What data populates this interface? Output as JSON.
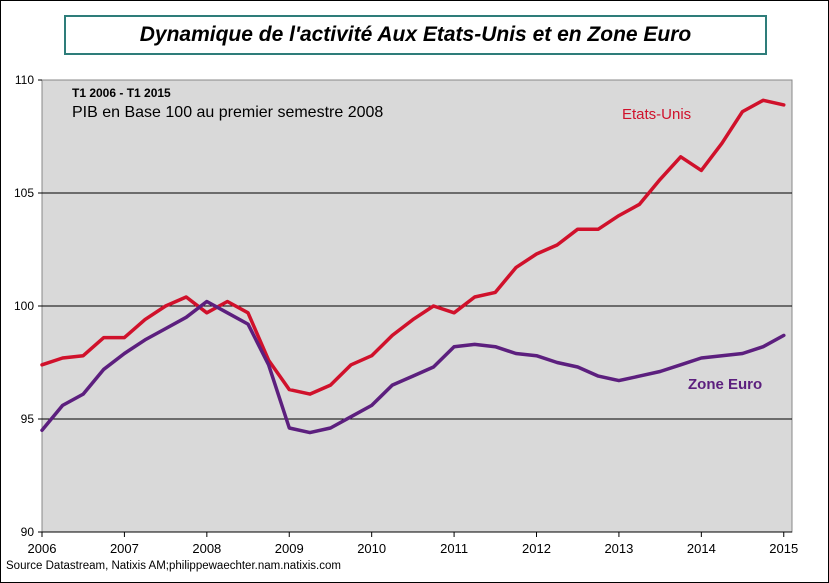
{
  "title": "Dynamique de l'activité Aux Etats-Unis et en Zone Euro",
  "source": "Source Datastream, Natixis AM;philippewaechter.nam.natixis.com",
  "colors": {
    "us": "#d0112b",
    "ez": "#5c1f7e",
    "plot_bg": "#d9d9d9",
    "title_border": "#2e7d7a"
  },
  "chart_data": {
    "type": "line",
    "title": "Dynamique de l'activité Aux Etats-Unis et en Zone Euro",
    "annotations": [
      "T1 2006 - T1 2015",
      "PIB en Base 100 au premier semestre 2008"
    ],
    "xlabel": "",
    "ylabel": "",
    "xlim": [
      2006,
      2015.1
    ],
    "ylim": [
      90,
      110
    ],
    "x_ticks": [
      "2006",
      "2007",
      "2008",
      "2009",
      "2010",
      "2011",
      "2012",
      "2013",
      "2014",
      "2015"
    ],
    "y_ticks": [
      "90",
      "95",
      "100",
      "105",
      "110"
    ],
    "grid": "horizontal",
    "x": [
      2006.0,
      2006.25,
      2006.5,
      2006.75,
      2007.0,
      2007.25,
      2007.5,
      2007.75,
      2008.0,
      2008.25,
      2008.5,
      2008.75,
      2009.0,
      2009.25,
      2009.5,
      2009.75,
      2010.0,
      2010.25,
      2010.5,
      2010.75,
      2011.0,
      2011.25,
      2011.5,
      2011.75,
      2012.0,
      2012.25,
      2012.5,
      2012.75,
      2013.0,
      2013.25,
      2013.5,
      2013.75,
      2014.0,
      2014.25,
      2014.5,
      2014.75,
      2015.0
    ],
    "series": [
      {
        "name": "Etats-Unis",
        "color": "#d0112b",
        "values": [
          97.4,
          97.7,
          97.8,
          98.6,
          98.6,
          99.4,
          100.0,
          100.4,
          99.7,
          100.2,
          99.7,
          97.6,
          96.3,
          96.1,
          96.5,
          97.4,
          97.8,
          98.7,
          99.4,
          100.0,
          99.7,
          100.4,
          100.6,
          101.7,
          102.3,
          102.7,
          103.4,
          103.4,
          104.0,
          104.5,
          105.6,
          106.6,
          106.0,
          107.2,
          108.6,
          109.1,
          108.9
        ]
      },
      {
        "name": "Zone Euro",
        "color": "#5c1f7e",
        "values": [
          94.5,
          95.6,
          96.1,
          97.2,
          97.9,
          98.5,
          99.0,
          99.5,
          100.2,
          99.7,
          99.2,
          97.4,
          94.6,
          94.4,
          94.6,
          95.1,
          95.6,
          96.5,
          96.9,
          97.3,
          98.2,
          98.3,
          98.2,
          97.9,
          97.8,
          97.5,
          97.3,
          96.9,
          96.7,
          96.9,
          97.1,
          97.4,
          97.7,
          97.8,
          97.9,
          98.2,
          98.7
        ]
      }
    ]
  }
}
